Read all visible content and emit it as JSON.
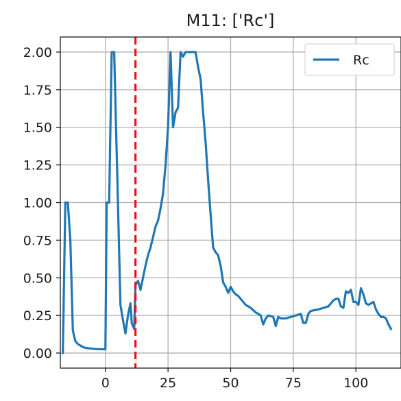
{
  "chart_data": {
    "type": "line",
    "title": "M11: ['Rc']",
    "xlabel": "",
    "ylabel": "",
    "xlim": [
      -18,
      118
    ],
    "ylim": [
      -0.1,
      2.1
    ],
    "xticks": [
      0,
      25,
      50,
      75,
      100
    ],
    "yticks": [
      0.0,
      0.25,
      0.5,
      0.75,
      1.0,
      1.25,
      1.5,
      1.75,
      2.0
    ],
    "xtick_labels": [
      "0",
      "25",
      "50",
      "75",
      "100"
    ],
    "ytick_labels": [
      "0.00",
      "0.25",
      "0.50",
      "0.75",
      "1.00",
      "1.25",
      "1.50",
      "1.75",
      "2.00"
    ],
    "grid": true,
    "legend_position": "top-right",
    "vline": {
      "x": 12,
      "color": "#ee1111",
      "style": "dashed"
    },
    "series": [
      {
        "name": "Rc",
        "color": "#1f77b4",
        "points": [
          [
            -17,
            0.0
          ],
          [
            -16,
            1.0
          ],
          [
            -15,
            1.0
          ],
          [
            -14,
            0.75
          ],
          [
            -13,
            0.15
          ],
          [
            -12,
            0.08
          ],
          [
            -11,
            0.06
          ],
          [
            -10,
            0.05
          ],
          [
            -9,
            0.04
          ],
          [
            -8,
            0.035
          ],
          [
            -6,
            0.03
          ],
          [
            -4,
            0.027
          ],
          [
            -2,
            0.025
          ],
          [
            0,
            0.025
          ],
          [
            0.5,
            1.0
          ],
          [
            1.5,
            1.0
          ],
          [
            2.5,
            2.0
          ],
          [
            3.5,
            2.0
          ],
          [
            5,
            1.0
          ],
          [
            6,
            0.32
          ],
          [
            7,
            0.22
          ],
          [
            8,
            0.13
          ],
          [
            9,
            0.25
          ],
          [
            10,
            0.33
          ],
          [
            10.5,
            0.2
          ],
          [
            11.5,
            0.16
          ],
          [
            12,
            0.45
          ],
          [
            13,
            0.48
          ],
          [
            14,
            0.42
          ],
          [
            15,
            0.5
          ],
          [
            16,
            0.58
          ],
          [
            17,
            0.65
          ],
          [
            18,
            0.7
          ],
          [
            19,
            0.77
          ],
          [
            20,
            0.84
          ],
          [
            21,
            0.88
          ],
          [
            22,
            0.96
          ],
          [
            23,
            1.06
          ],
          [
            24,
            1.25
          ],
          [
            25,
            1.5
          ],
          [
            26,
            2.0
          ],
          [
            27,
            1.5
          ],
          [
            28,
            1.6
          ],
          [
            29,
            1.63
          ],
          [
            30,
            2.0
          ],
          [
            31,
            1.97
          ],
          [
            32,
            2.0
          ],
          [
            34,
            2.0
          ],
          [
            36,
            2.0
          ],
          [
            37,
            1.9
          ],
          [
            38,
            1.82
          ],
          [
            39,
            1.6
          ],
          [
            40,
            1.4
          ],
          [
            41,
            1.15
          ],
          [
            42,
            0.92
          ],
          [
            43,
            0.7
          ],
          [
            44,
            0.67
          ],
          [
            45,
            0.65
          ],
          [
            46,
            0.58
          ],
          [
            47,
            0.47
          ],
          [
            48,
            0.44
          ],
          [
            49,
            0.4
          ],
          [
            50,
            0.44
          ],
          [
            51,
            0.41
          ],
          [
            52,
            0.39
          ],
          [
            53,
            0.38
          ],
          [
            54,
            0.36
          ],
          [
            55,
            0.34
          ],
          [
            56,
            0.32
          ],
          [
            58,
            0.3
          ],
          [
            60,
            0.27
          ],
          [
            62,
            0.25
          ],
          [
            63,
            0.19
          ],
          [
            64,
            0.23
          ],
          [
            65,
            0.25
          ],
          [
            67,
            0.24
          ],
          [
            68,
            0.18
          ],
          [
            69,
            0.24
          ],
          [
            70,
            0.23
          ],
          [
            72,
            0.23
          ],
          [
            74,
            0.24
          ],
          [
            76,
            0.25
          ],
          [
            78,
            0.26
          ],
          [
            79,
            0.2
          ],
          [
            80,
            0.2
          ],
          [
            81,
            0.26
          ],
          [
            82,
            0.28
          ],
          [
            85,
            0.29
          ],
          [
            87,
            0.3
          ],
          [
            89,
            0.31
          ],
          [
            91,
            0.35
          ],
          [
            92,
            0.36
          ],
          [
            93,
            0.36
          ],
          [
            94,
            0.31
          ],
          [
            95,
            0.3
          ],
          [
            96,
            0.41
          ],
          [
            97,
            0.4
          ],
          [
            98,
            0.42
          ],
          [
            99,
            0.34
          ],
          [
            100,
            0.34
          ],
          [
            101,
            0.32
          ],
          [
            102,
            0.43
          ],
          [
            103,
            0.39
          ],
          [
            104,
            0.33
          ],
          [
            105,
            0.32
          ],
          [
            106,
            0.33
          ],
          [
            107,
            0.34
          ],
          [
            108,
            0.29
          ],
          [
            109,
            0.26
          ],
          [
            110,
            0.24
          ],
          [
            111,
            0.24
          ],
          [
            112,
            0.23
          ],
          [
            113,
            0.19
          ],
          [
            114,
            0.16
          ]
        ]
      }
    ]
  }
}
